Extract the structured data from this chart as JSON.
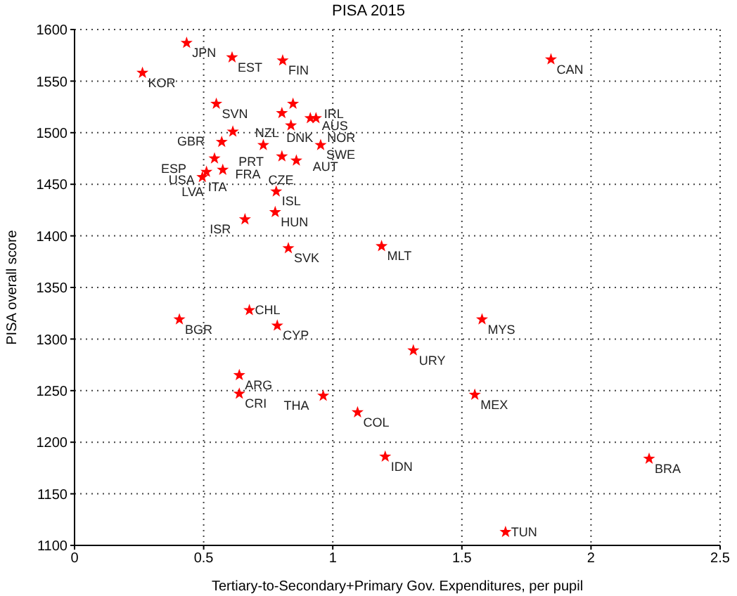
{
  "chart_data": {
    "type": "scatter",
    "title": "PISA 2015",
    "xlabel": "Tertiary-to-Secondary+Primary Gov. Expenditures, per pupil",
    "ylabel": "PISA overall score",
    "xlim": [
      0,
      2.5
    ],
    "xticks": [
      0,
      0.5,
      1,
      1.5,
      2,
      2.5
    ],
    "ylim": [
      1100,
      1600
    ],
    "yticks": [
      1100,
      1150,
      1200,
      1250,
      1300,
      1350,
      1400,
      1450,
      1500,
      1550,
      1600
    ],
    "grid": true,
    "marker": "star",
    "series": [
      {
        "color": "#ff0000",
        "x": [
          0.434,
          0.61,
          0.806,
          0.263,
          0.549,
          0.846,
          0.803,
          0.838,
          0.913,
          0.935,
          0.613,
          0.57,
          0.731,
          0.953,
          0.803,
          0.859,
          0.542,
          0.574,
          0.511,
          0.495,
          0.781,
          0.777,
          0.66,
          0.828,
          1.845,
          1.189,
          0.406,
          0.677,
          0.785,
          1.578,
          1.312,
          0.638,
          0.638,
          0.963,
          1.55,
          1.096,
          1.203,
          2.225,
          1.669
        ],
        "values": [
          1587,
          1573,
          1570,
          1558,
          1528,
          1528,
          1519,
          1507,
          1514,
          1514,
          1501,
          1491,
          1488,
          1488,
          1477,
          1473,
          1475,
          1464,
          1462,
          1457,
          1443,
          1423,
          1416,
          1388,
          1571,
          1390,
          1319,
          1328,
          1313,
          1319,
          1289,
          1265,
          1247,
          1245,
          1246,
          1229,
          1186,
          1184,
          1113
        ]
      }
    ],
    "annotations": [
      {
        "text": "JPN",
        "x": 0.434,
        "y": 1587
      },
      {
        "text": "EST",
        "x": 0.61,
        "y": 1573
      },
      {
        "text": "FIN",
        "x": 0.806,
        "y": 1570
      },
      {
        "text": "KOR",
        "x": 0.263,
        "y": 1558
      },
      {
        "text": "SVN",
        "x": 0.549,
        "y": 1528
      },
      {
        "text": "IRL",
        "x": 0.846,
        "y": 1528
      },
      {
        "text": "NZL",
        "x": 0.803,
        "y": 1519
      },
      {
        "text": "AUS",
        "x": 0.838,
        "y": 1507
      },
      {
        "text": "NOR",
        "x": 0.913,
        "y": 1514
      },
      {
        "text": "DNK",
        "x": 0.935,
        "y": 1514
      },
      {
        "text": "GBR",
        "x": 0.613,
        "y": 1501
      },
      {
        "text": "PRT",
        "x": 0.57,
        "y": 1491
      },
      {
        "text": "FRA",
        "x": 0.731,
        "y": 1488
      },
      {
        "text": "SWE",
        "x": 0.953,
        "y": 1488
      },
      {
        "text": "AUT",
        "x": 0.803,
        "y": 1477
      },
      {
        "text": "CZE",
        "x": 0.859,
        "y": 1473
      },
      {
        "text": "ESP",
        "x": 0.542,
        "y": 1475
      },
      {
        "text": "USA",
        "x": 0.574,
        "y": 1464
      },
      {
        "text": "LVA",
        "x": 0.511,
        "y": 1462
      },
      {
        "text": "ITA",
        "x": 0.495,
        "y": 1457
      },
      {
        "text": "ISL",
        "x": 0.781,
        "y": 1443
      },
      {
        "text": "HUN",
        "x": 0.777,
        "y": 1423
      },
      {
        "text": "ISR",
        "x": 0.66,
        "y": 1416
      },
      {
        "text": "SVK",
        "x": 0.828,
        "y": 1388
      },
      {
        "text": "CAN",
        "x": 1.845,
        "y": 1571
      },
      {
        "text": "MLT",
        "x": 1.189,
        "y": 1390
      },
      {
        "text": "BGR",
        "x": 0.406,
        "y": 1319
      },
      {
        "text": "CHL",
        "x": 0.677,
        "y": 1328
      },
      {
        "text": "CYP",
        "x": 0.785,
        "y": 1313
      },
      {
        "text": "MYS",
        "x": 1.578,
        "y": 1319
      },
      {
        "text": "URY",
        "x": 1.312,
        "y": 1289
      },
      {
        "text": "ARG",
        "x": 0.638,
        "y": 1265
      },
      {
        "text": "CRI",
        "x": 0.638,
        "y": 1247
      },
      {
        "text": "THA",
        "x": 0.963,
        "y": 1245
      },
      {
        "text": "MEX",
        "x": 1.55,
        "y": 1246
      },
      {
        "text": "COL",
        "x": 1.096,
        "y": 1229
      },
      {
        "text": "IDN",
        "x": 1.203,
        "y": 1186
      },
      {
        "text": "BRA",
        "x": 2.225,
        "y": 1184
      },
      {
        "text": "TUN",
        "x": 1.669,
        "y": 1113
      }
    ]
  }
}
